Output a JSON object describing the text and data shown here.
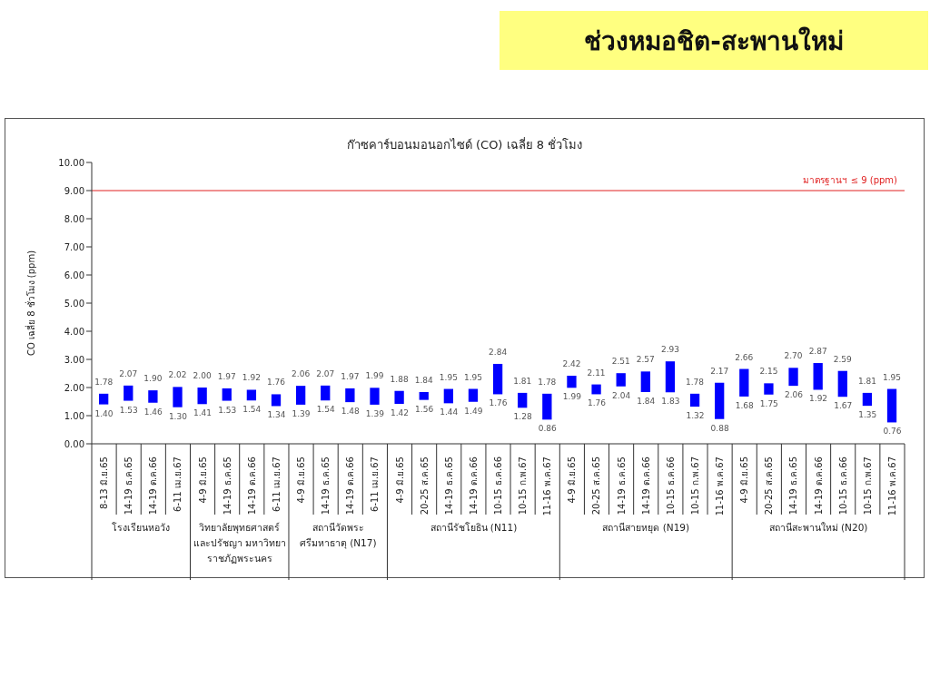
{
  "chart_data": {
    "type": "bar",
    "title": "ช่วงหมอชิต-สะพานใหม่",
    "subtitle": "ก๊าซคาร์บอนมอนอกไซด์ (CO) เฉลี่ย 8 ชั่วโมง",
    "ylabel": "CO เฉลี่ย 8 ชั่วโมง (ppm)",
    "categories": [
      "8-13 มิ.ย.65",
      "14-19 ธ.ค.65",
      "14-19 ต.ค.66",
      "6-11 เม.ย.67",
      "4-9 มิ.ย.65",
      "14-19 ธ.ค.65",
      "14-19 ต.ค.66",
      "6-11 เม.ย.67",
      "4-9 มิ.ย.65",
      "14-19 ธ.ค.65",
      "14-19 ต.ค.66",
      "6-11 เม.ย.67",
      "4-9 มิ.ย.65",
      "20-25 ส.ค.65",
      "14-19 ธ.ค.65",
      "14-19 ต.ค.66",
      "10-15 ธ.ค.66",
      "10-15 ก.พ.67",
      "11-16 พ.ค.67",
      "4-9 มิ.ย.65",
      "20-25 ส.ค.65",
      "14-19 ธ.ค.65",
      "14-19 ต.ค.66",
      "10-15 ธ.ค.66",
      "10-15 ก.พ.67",
      "11-16 พ.ค.67",
      "4-9 มิ.ย.65",
      "20-25 ส.ค.65",
      "14-19 ธ.ค.65",
      "14-19 ต.ค.66",
      "10-15 ธ.ค.66",
      "10-15 ก.พ.67",
      "11-16 พ.ค.67"
    ],
    "base": [
      1.4,
      1.53,
      1.46,
      1.3,
      1.41,
      1.53,
      1.54,
      1.34,
      1.39,
      1.54,
      1.48,
      1.39,
      1.42,
      1.56,
      1.44,
      1.49,
      1.76,
      1.28,
      0.86,
      1.99,
      1.76,
      2.04,
      1.84,
      1.83,
      1.32,
      0.88,
      1.68,
      1.75,
      2.06,
      1.92,
      1.67,
      1.35,
      0.76
    ],
    "values": [
      0.38,
      0.54,
      0.44,
      0.72,
      0.59,
      0.44,
      0.38,
      0.42,
      0.67,
      0.53,
      0.49,
      0.6,
      0.46,
      0.28,
      0.51,
      0.46,
      1.08,
      0.53,
      0.92,
      0.43,
      0.35,
      0.47,
      0.73,
      1.1,
      0.46,
      1.29,
      0.98,
      0.4,
      0.64,
      0.95,
      0.92,
      0.46,
      1.19
    ],
    "value_labels": [
      "1.78",
      "2.07",
      "1.90",
      "2.02",
      "2.00",
      "1.97",
      "1.92",
      "1.76",
      "2.06",
      "2.07",
      "1.97",
      "1.99",
      "1.88",
      "1.84",
      "1.95",
      "1.95",
      "2.84",
      "1.81",
      "1.78",
      "2.42",
      "2.11",
      "2.51",
      "2.57",
      "2.93",
      "1.78",
      "2.17",
      "2.66",
      "2.15",
      "2.70",
      "2.87",
      "2.59",
      "1.81",
      "1.95"
    ],
    "color": "#0000ff",
    "ylim": [
      0,
      10
    ],
    "yticks": [
      {
        "value": 0,
        "label": "0.00"
      },
      {
        "value": 1,
        "label": "1.00"
      },
      {
        "value": 2,
        "label": "2.00"
      },
      {
        "value": 3,
        "label": "3.00"
      },
      {
        "value": 4,
        "label": "4.00"
      },
      {
        "value": 5,
        "label": "5.00"
      },
      {
        "value": 6,
        "label": "6.00"
      },
      {
        "value": 7,
        "label": "7.00"
      },
      {
        "value": 8,
        "label": "8.00"
      },
      {
        "value": 9,
        "label": "9.00"
      },
      {
        "value": 10,
        "label": "10.00"
      }
    ],
    "ref_lines": [
      {
        "axis": "y",
        "value": 9,
        "label": "มาตรฐานฯ ≤ 9 (ppm)",
        "color": "#e02020"
      }
    ],
    "grid": false,
    "legend": false,
    "annotations": [
      "1.40",
      "1.53",
      "1.46",
      "1.30",
      "1.41",
      "1.53",
      "1.54",
      "1.34",
      "1.39",
      "1.54",
      "1.48",
      "1.39",
      "1.42",
      "1.56",
      "1.44",
      "1.49",
      "1.76",
      "1.28",
      "0.86",
      "1.99",
      "1.76",
      "2.04",
      "1.84",
      "1.83",
      "1.32",
      "0.88",
      "1.68",
      "1.75",
      "2.06",
      "1.92",
      "1.67",
      "1.35",
      "0.76",
      "โรงเรียนหอวัง",
      "วิทยาลัยพุทธศาสตร์ และปรัชญา มหาวิทยาราชภัฏพระนคร",
      "สถานีวัดพระศรีมหาธาตุ (N17)",
      "สถานีรัชโยธิน (N11)",
      "สถานีสายหยุด (N19)",
      "สถานีสะพานใหม่ (N20)"
    ]
  }
}
